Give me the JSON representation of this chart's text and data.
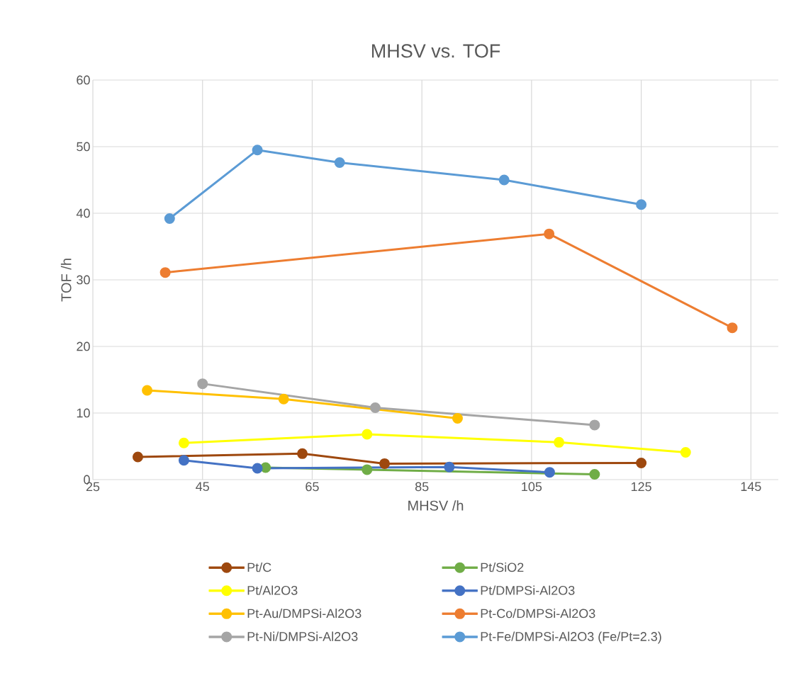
{
  "chart_data": {
    "type": "line",
    "title": "MHSV vs. TOF",
    "xlabel": "MHSV /h",
    "ylabel": "TOF /h",
    "xlim": [
      25,
      150
    ],
    "xticks": [
      25,
      45,
      65,
      85,
      105,
      125,
      145
    ],
    "ylim": [
      0,
      60
    ],
    "yticks": [
      0,
      10,
      20,
      30,
      40,
      50,
      60
    ],
    "grid": true,
    "legend": "bottom",
    "marker": "circle",
    "line_style": "solid",
    "series": [
      {
        "name": "Pt/C",
        "color": "#9e480e",
        "x": [
          33.2,
          63.2,
          78.2,
          125
        ],
        "values": [
          3.4,
          3.9,
          2.4,
          2.5
        ]
      },
      {
        "name": "Pt/SiO2",
        "color": "#70ad47",
        "x": [
          56.5,
          75,
          116.5
        ],
        "values": [
          1.8,
          1.5,
          0.8
        ]
      },
      {
        "name": "Pt/Al2O3",
        "color": "#ffff00",
        "x": [
          41.6,
          75,
          110,
          133.1
        ],
        "values": [
          5.5,
          6.8,
          5.6,
          4.1
        ]
      },
      {
        "name": "Pt/DMPSi-Al2O3",
        "color": "#4472c4",
        "x": [
          41.6,
          55,
          90,
          108.3
        ],
        "values": [
          2.9,
          1.7,
          1.9,
          1.1
        ]
      },
      {
        "name": "Pt-Au/DMPSi-Al2O3",
        "color": "#ffc000",
        "x": [
          34.9,
          59.8,
          91.5
        ],
        "values": [
          13.4,
          12.1,
          9.2
        ]
      },
      {
        "name": "Pt-Co/DMPSi-Al2O3",
        "color": "#ed7d31",
        "x": [
          38.2,
          108.2,
          141.6
        ],
        "values": [
          31.1,
          36.9,
          22.8
        ]
      },
      {
        "name": "Pt-Ni/DMPSi-Al2O3",
        "color": "#a5a5a5",
        "x": [
          45,
          76.5,
          116.5
        ],
        "values": [
          14.4,
          10.8,
          8.2
        ]
      },
      {
        "name": "Pt-Fe/DMPSi-Al2O3 (Fe/Pt=2.3)",
        "color": "#5b9bd5",
        "x": [
          39,
          55,
          70,
          100,
          125
        ],
        "values": [
          39.2,
          49.5,
          47.6,
          45.0,
          41.3
        ]
      }
    ]
  }
}
